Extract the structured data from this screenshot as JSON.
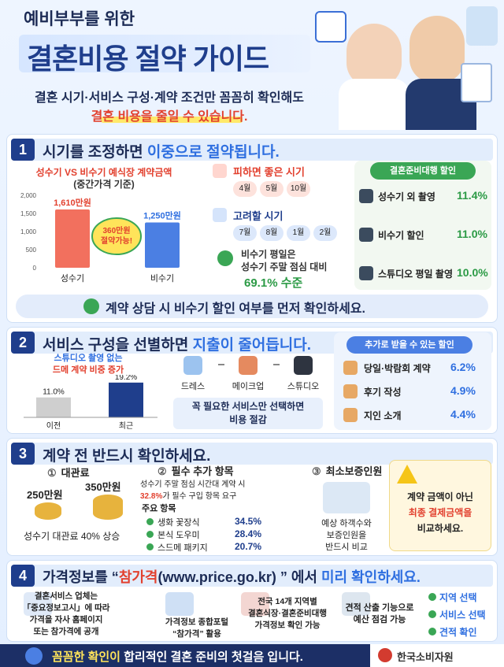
{
  "header": {
    "subtitle": "예비부부를 위한",
    "title": "결혼비용 절약 가이드",
    "lead_1": "결혼 시기·서비스 구성·계약 조건만 꼼꼼히 확인해도",
    "lead_2": "결혼 비용을 줄일 수 있습니다."
  },
  "section_1": {
    "number": "1",
    "title": "시기를 조정하면 ",
    "title_highlight": "이중으로 절약됩니다.",
    "chart_data": {
      "type": "bar",
      "title": "성수기 VS 비수기 예식장 계약금액",
      "subtitle": "(중간가격 기준)",
      "categories": [
        "성수기",
        "비수기"
      ],
      "values": [
        1610,
        1250
      ],
      "value_labels": [
        "1,610만원",
        "1,250만원"
      ],
      "colors": [
        "#f2705e",
        "#4b7fe3"
      ],
      "ylim": [
        0,
        2000
      ],
      "yticks": [
        0,
        500,
        {
          "value": 1000,
          "label": "1,000"
        },
        {
          "value": 1500,
          "label": "1,500"
        },
        {
          "value": 2000,
          "label": "2,000"
        }
      ],
      "annotation": [
        "360만원",
        "절약가능!"
      ]
    },
    "avoid": {
      "title": "피하면 좋은 시기",
      "months": [
        "4월",
        "5월",
        "10월"
      ]
    },
    "consider": {
      "title": "고려할 시기",
      "months": [
        "7월",
        "8월",
        "1월",
        "2월"
      ]
    },
    "note": [
      "비수기 평일은",
      "성수기 주말 점심 대비"
    ],
    "note_highlight": "69.1% 수준",
    "discounts": {
      "title": "결혼준비대행 할인",
      "items": [
        {
          "label": "성수기 외 촬영",
          "value": "11.4%"
        },
        {
          "label": "비수기 할인",
          "value": "11.0%"
        },
        {
          "label": "스튜디오 평일 촬영",
          "value": "10.0%"
        }
      ]
    },
    "callout": "계약 상담 시 비수기 할인 여부를 먼저 확인하세요."
  },
  "section_2": {
    "number": "2",
    "title": "서비스 구성을 선별하면 ",
    "title_highlight": "지출이 줄어듭니다.",
    "chart_data": {
      "type": "bar",
      "label": [
        "스튜디오 촬영 없는",
        "드메 계약 비중 증가"
      ],
      "categories": [
        "이전",
        "최근"
      ],
      "values": [
        11.0,
        19.2
      ],
      "value_labels": [
        "11.0%",
        "19.2%"
      ],
      "colors": [
        "#cfcfcf",
        "#1f3e8c"
      ],
      "ylim": [
        0,
        20
      ]
    },
    "services": [
      "드레스",
      "메이크업",
      "스튜디오"
    ],
    "note": [
      "꼭 필요한 서비스만 선택하면",
      "비용 절감"
    ],
    "discounts": {
      "title": "추가로 받을 수 있는 할인",
      "items": [
        {
          "label": "당일·박람회 계약",
          "value": "6.2%"
        },
        {
          "label": "후기 작성",
          "value": "4.9%"
        },
        {
          "label": "지인 소개",
          "value": "4.4%"
        }
      ]
    }
  },
  "section_3": {
    "number": "3",
    "title": "계약 전 반드시 확인하세요.",
    "rental": {
      "number": "①",
      "title": "대관료",
      "before": "250만원",
      "after": "350만원",
      "note": "성수기 대관료 40% 상승"
    },
    "extras": {
      "number": "②",
      "title": "필수 추가 항목",
      "text": "성수기 주말 점심 시간대 계약 시",
      "text_highlight": "32.8%",
      "text_2": "가 필수 구입 항목 요구",
      "subtitle": "주요 항목",
      "items": [
        {
          "label": "생화 꽃장식",
          "value": "34.5%"
        },
        {
          "label": "본식 도우미",
          "value": "28.4%"
        },
        {
          "label": "스드메 패키지",
          "value": "20.7%"
        }
      ]
    },
    "guarantee": {
      "number": "③",
      "title": "최소보증인원",
      "text": [
        "예상 하객수와",
        "보증인원을",
        "반드시 비교"
      ]
    },
    "warning": {
      "text": "계약 금액이 아닌",
      "highlight": "최종 결제금액을",
      "text_2": "비교하세요."
    }
  },
  "section_4": {
    "number": "4",
    "title_parts": [
      "가격정보를 “",
      "참가격",
      "(www.price.go.kr) ” 에서 ",
      "미리 확인하세요."
    ],
    "items": [
      [
        "결혼서비스 업체는",
        "「중요정보고시」에 따라",
        "가격을 자사 홈페이지",
        "또는 참가격에 공개"
      ],
      [
        "가격정보 종합포털",
        "“참가격” 활용"
      ],
      [
        "전국 14개 지역별",
        "결혼식장·결혼준비대행",
        "가격정보 확인 가능"
      ],
      [
        "견적 산출 기능으로",
        "예산 점검 가능"
      ]
    ],
    "checks": [
      "지역 선택",
      "서비스 선택",
      "견적 확인"
    ]
  },
  "footer": {
    "text_highlight": "꼼꼼한 확인이",
    "text": " 합리적인 결혼 준비의 첫걸음 입니다.",
    "org": "한국소비자원"
  }
}
